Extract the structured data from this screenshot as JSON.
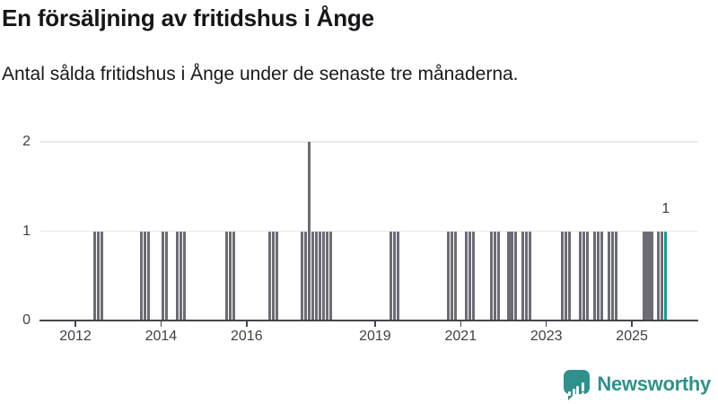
{
  "header": {
    "title": "En försäljning av fritidshus i Ånge",
    "subtitle": "Antal sålda fritidshus i Ånge under de senaste tre månaderna."
  },
  "footer": {
    "brand": "Newsworthy",
    "logo_icon": "bar-chart-speech-bubble-icon"
  },
  "colors": {
    "bar": "#6c6c75",
    "highlight": "#00a39b",
    "brand": "#2f918b",
    "grid": "#e9e9e9",
    "axis": "#45464c",
    "title_text": "#14161a",
    "tick_text": "#3d4045"
  },
  "chart_data": {
    "type": "bar",
    "title": "En försäljning av fritidshus i Ånge",
    "subtitle": "Antal sålda fritidshus i Ånge under de senaste tre månaderna.",
    "xlabel": "",
    "ylabel": "",
    "ylim": [
      0,
      2
    ],
    "y_ticks": [
      0,
      1,
      2
    ],
    "x_tick_years": [
      2012,
      2014,
      2016,
      2019,
      2021,
      2023,
      2025
    ],
    "x_domain": [
      "2011-02",
      "2026-08"
    ],
    "grid": "horizontal",
    "legend": "none",
    "months": [
      "2012-06",
      "2012-07",
      "2012-08",
      "2013-07",
      "2013-08",
      "2013-09",
      "2014-01",
      "2014-02",
      "2014-05",
      "2014-06",
      "2014-07",
      "2015-07",
      "2015-08",
      "2015-09",
      "2016-07",
      "2016-08",
      "2016-09",
      "2017-04",
      "2017-05",
      "2017-06",
      "2017-07",
      "2017-08",
      "2017-09",
      "2017-10",
      "2017-11",
      "2017-12",
      "2019-05",
      "2019-06",
      "2019-07",
      "2020-09",
      "2020-10",
      "2020-11",
      "2021-02",
      "2021-03",
      "2021-04",
      "2021-09",
      "2021-10",
      "2021-11",
      "2022-02",
      "2022-03",
      "2022-04",
      "2022-06",
      "2022-07",
      "2022-08",
      "2023-05",
      "2023-06",
      "2023-07",
      "2023-10",
      "2023-11",
      "2023-12",
      "2024-02",
      "2024-03",
      "2024-04",
      "2024-06",
      "2024-07",
      "2024-08",
      "2025-04",
      "2025-05",
      "2025-06",
      "2025-08",
      "2025-09",
      "2025-10"
    ],
    "values": [
      1,
      1,
      1,
      1,
      1,
      1,
      1,
      1,
      1,
      1,
      1,
      1,
      1,
      1,
      1,
      1,
      1,
      1,
      1,
      2,
      1,
      1,
      1,
      1,
      1,
      1,
      1,
      1,
      1,
      1,
      1,
      1,
      1,
      1,
      1,
      1,
      1,
      1,
      1,
      1,
      1,
      1,
      1,
      1,
      1,
      1,
      1,
      1,
      1,
      1,
      1,
      1,
      1,
      1,
      1,
      1,
      1,
      1,
      1,
      1,
      1,
      1
    ],
    "highlight_month": "2025-10",
    "annotation": {
      "month": "2025-10",
      "label": "1"
    }
  }
}
